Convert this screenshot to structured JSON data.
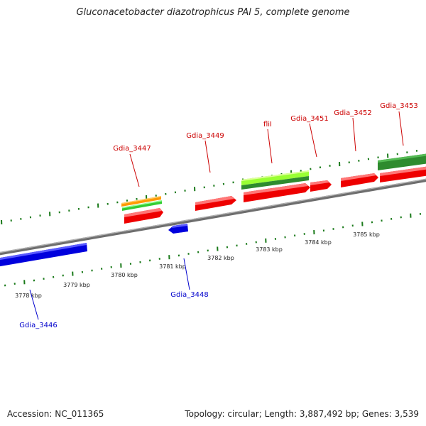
{
  "title": "Gluconacetobacter diazotrophicus PAl 5, complete genome",
  "footer": {
    "accession": "Accession: NC_011365",
    "topology": "Topology: circular; Length: 3,887,492 bp; Genes: 3,539"
  },
  "axis": {
    "unit": "kbp",
    "ticks": [
      "3778 kbp",
      "3779 kbp",
      "3780 kbp",
      "3781 kbp",
      "3782 kbp",
      "3783 kbp",
      "3784 kbp",
      "3785 kbp"
    ]
  },
  "genes": {
    "forward": [
      "Gdia_3447",
      "Gdia_3449",
      "fliI",
      "Gdia_3451",
      "Gdia_3452",
      "Gdia_3453"
    ],
    "reverse": [
      "Gdia_3446",
      "Gdia_3448"
    ]
  },
  "colors": {
    "cds": "#ff0000",
    "reverse_cds": "#0000ee",
    "forward_label": "#cc0000",
    "reverse_label": "#0000cc",
    "green_feature": "#2e8b2e",
    "lightgreen_feature": "#99ff33",
    "orange_feature": "#ff9900",
    "tick_marks": "#1a7a1a",
    "backbone": "#808080"
  }
}
